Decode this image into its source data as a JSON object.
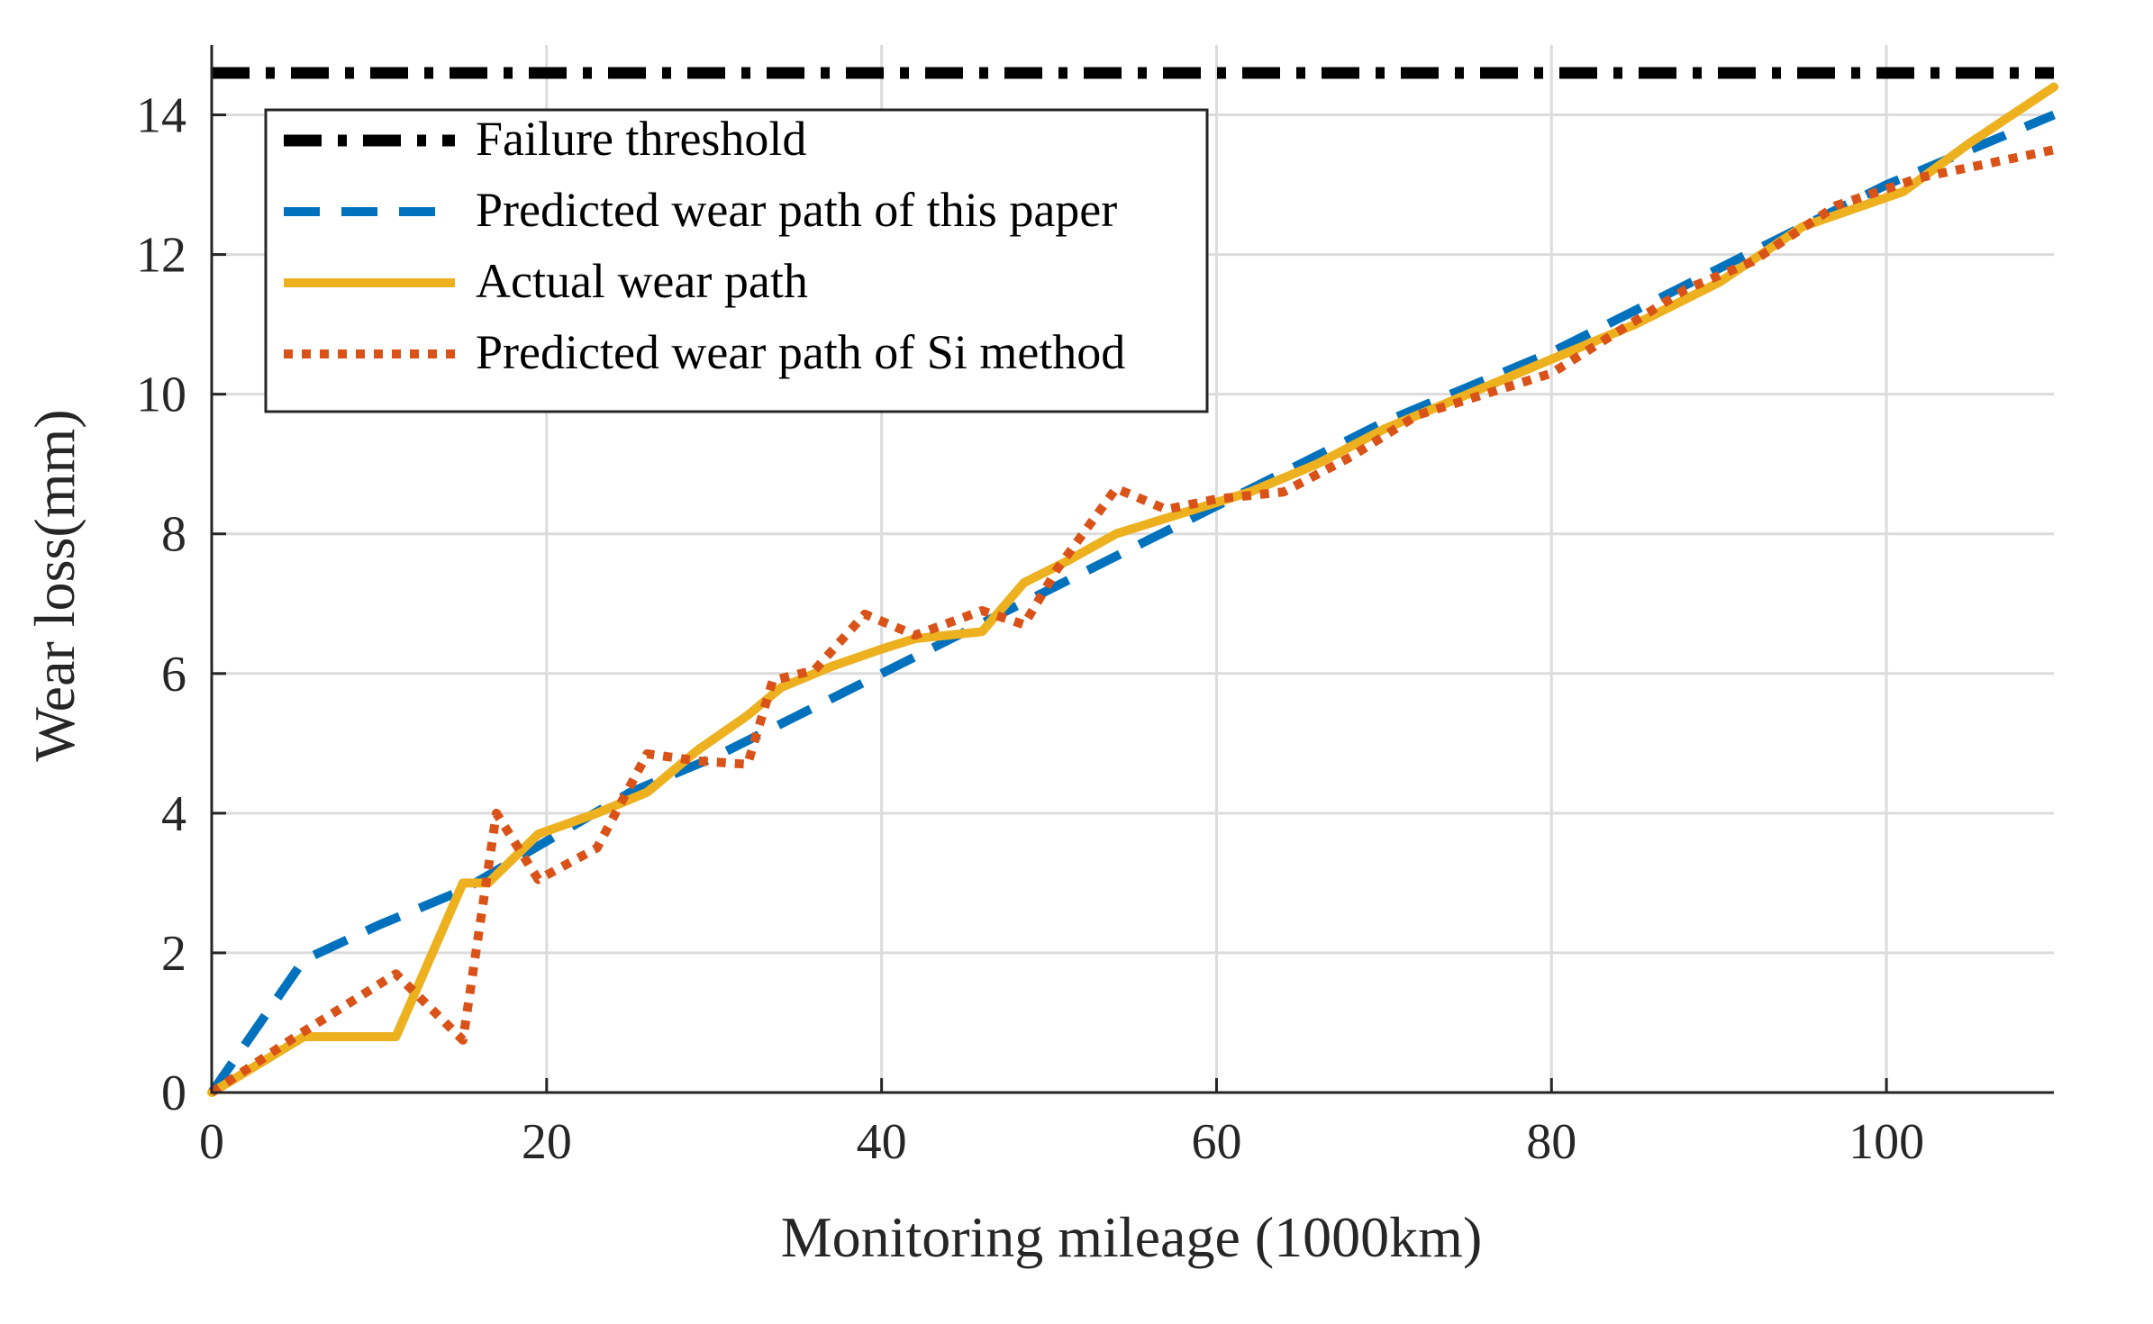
{
  "chart_data": {
    "type": "line",
    "title": "",
    "xlabel": "Monitoring mileage (1000km)",
    "ylabel": "Wear loss(mm)",
    "xlim": [
      0,
      110
    ],
    "ylim": [
      0,
      15
    ],
    "xticks": [
      0,
      20,
      40,
      60,
      80,
      100
    ],
    "yticks": [
      0,
      2,
      4,
      6,
      8,
      10,
      12,
      14
    ],
    "xtick_labels": [
      "0",
      "20",
      "40",
      "60",
      "80",
      "100"
    ],
    "ytick_labels": [
      "0",
      "2",
      "4",
      "6",
      "8",
      "10",
      "12",
      "14"
    ],
    "grid": true,
    "legend_position": "top-left",
    "series": [
      {
        "name": "Failure threshold",
        "color": "#000000",
        "style": "dash-dot",
        "x": [
          0,
          110
        ],
        "y": [
          14.6,
          14.6
        ]
      },
      {
        "name": "Predicted wear path of this paper",
        "color": "#0072BD",
        "style": "dashed",
        "x": [
          0,
          5.5,
          10,
          15,
          20,
          25,
          30,
          35,
          40,
          45,
          50,
          55,
          60,
          65,
          70,
          75,
          80,
          85,
          90,
          95,
          100,
          105,
          110
        ],
        "y": [
          0,
          1.9,
          2.4,
          2.9,
          3.6,
          4.3,
          4.8,
          5.4,
          6.0,
          6.6,
          7.2,
          7.8,
          8.4,
          9.0,
          9.6,
          10.1,
          10.6,
          11.2,
          11.8,
          12.4,
          13.0,
          13.5,
          14.0
        ]
      },
      {
        "name": "Actual wear path",
        "color": "#EDB120",
        "style": "solid",
        "x": [
          0,
          5.5,
          11,
          15,
          16.5,
          19.5,
          23,
          26,
          29,
          32,
          34,
          37,
          40,
          42,
          46,
          48.5,
          51,
          54,
          58,
          62,
          66,
          70,
          75,
          80,
          85,
          90,
          95,
          101,
          105,
          110
        ],
        "y": [
          0,
          0.8,
          0.8,
          3.0,
          3.0,
          3.7,
          4.0,
          4.3,
          4.9,
          5.4,
          5.8,
          6.1,
          6.35,
          6.5,
          6.6,
          7.3,
          7.6,
          8.0,
          8.3,
          8.6,
          9.0,
          9.5,
          10.0,
          10.5,
          11.0,
          11.6,
          12.4,
          12.9,
          13.6,
          14.4
        ]
      },
      {
        "name": "Predicted wear path of Si method",
        "color": "#D95319",
        "style": "dotted",
        "x": [
          0,
          5,
          11,
          15,
          17,
          19.5,
          23,
          26,
          29,
          32,
          33.5,
          36,
          39,
          42,
          46,
          48.5,
          50.5,
          54,
          57,
          60,
          64,
          68,
          72,
          76,
          80,
          84,
          88,
          92,
          97,
          102,
          106,
          110
        ],
        "y": [
          0,
          0.8,
          1.7,
          0.75,
          4.0,
          3.05,
          3.5,
          4.85,
          4.75,
          4.7,
          5.9,
          6.05,
          6.85,
          6.55,
          6.9,
          6.7,
          7.5,
          8.65,
          8.35,
          8.5,
          8.6,
          9.1,
          9.7,
          10.0,
          10.3,
          10.9,
          11.5,
          11.9,
          12.7,
          13.1,
          13.3,
          13.5
        ]
      }
    ]
  }
}
